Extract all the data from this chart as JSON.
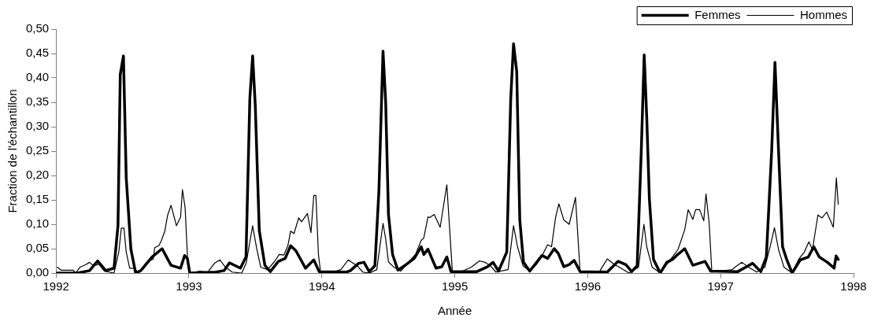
{
  "chart_data": {
    "type": "line",
    "xlabel": "Année",
    "ylabel": "Fraction de l'échantillon",
    "legend": "top right",
    "grid": false,
    "marker": "none",
    "line_style": "solid",
    "xlim": [
      1992,
      1998
    ],
    "xticks": [
      1992,
      1993,
      1994,
      1995,
      1996,
      1997,
      1998
    ],
    "ylim": [
      0,
      0.5
    ],
    "yticks": [
      {
        "value": 0,
        "label": "0,00"
      },
      {
        "value": 0.05,
        "label": "0,05"
      },
      {
        "value": 0.1,
        "label": "0,10"
      },
      {
        "value": 0.15,
        "label": "0,15"
      },
      {
        "value": 0.2,
        "label": "0,20"
      },
      {
        "value": 0.25,
        "label": "0,25"
      },
      {
        "value": 0.3,
        "label": "0,30"
      },
      {
        "value": 0.35,
        "label": "0,35"
      },
      {
        "value": 0.4,
        "label": "0,40"
      },
      {
        "value": 0.45,
        "label": "0,45"
      },
      {
        "value": 0.5,
        "label": "0,50"
      }
    ],
    "series": [
      {
        "name": "Femmes",
        "color": "#000000",
        "x": [
          1992.006,
          1992.16,
          1992.252,
          1992.313,
          1992.374,
          1992.436,
          1992.466,
          1992.483,
          1992.507,
          1992.528,
          1992.563,
          1992.599,
          1992.638,
          1992.722,
          1992.798,
          1992.865,
          1992.937,
          1992.967,
          1992.988,
          1993.006,
          1993.202,
          1993.264,
          1993.305,
          1993.387,
          1993.429,
          1993.458,
          1993.479,
          1993.499,
          1993.529,
          1993.571,
          1993.612,
          1993.673,
          1993.724,
          1993.765,
          1993.804,
          1993.877,
          1993.939,
          1993.98,
          1994.184,
          1994.215,
          1994.276,
          1994.317,
          1994.356,
          1994.399,
          1994.429,
          1994.46,
          1994.48,
          1994.501,
          1994.532,
          1994.572,
          1994.632,
          1994.695,
          1994.747,
          1994.767,
          1994.798,
          1994.859,
          1994.902,
          1994.94,
          1994.971,
          1995.166,
          1995.247,
          1995.288,
          1995.329,
          1995.391,
          1995.421,
          1995.442,
          1995.466,
          1995.489,
          1995.517,
          1995.564,
          1995.656,
          1995.699,
          1995.748,
          1995.779,
          1995.82,
          1995.859,
          1995.898,
          1995.943,
          1996.147,
          1996.229,
          1996.288,
          1996.331,
          1996.372,
          1996.403,
          1996.425,
          1996.444,
          1996.464,
          1996.495,
          1996.546,
          1996.595,
          1996.638,
          1996.669,
          1996.73,
          1996.791,
          1996.883,
          1996.925,
          1997.129,
          1997.19,
          1997.241,
          1997.302,
          1997.344,
          1997.384,
          1997.409,
          1997.436,
          1997.466,
          1997.497,
          1997.538,
          1997.599,
          1997.66,
          1997.701,
          1997.742,
          1997.804,
          1997.854,
          1997.869,
          1997.885
        ],
        "values": [
          0,
          0,
          0.005,
          0.025,
          0.005,
          0.01,
          0.098,
          0.407,
          0.445,
          0.195,
          0.049,
          0,
          0.005,
          0.033,
          0.05,
          0.016,
          0.01,
          0.036,
          0.03,
          0,
          0.002,
          0.005,
          0.021,
          0.01,
          0.033,
          0.358,
          0.445,
          0.343,
          0.087,
          0.016,
          0.003,
          0.024,
          0.03,
          0.056,
          0.046,
          0.01,
          0.027,
          0.003,
          0.002,
          0.005,
          0.02,
          0.022,
          0.003,
          0.015,
          0.168,
          0.455,
          0.35,
          0.12,
          0.038,
          0.006,
          0.017,
          0.03,
          0.054,
          0.038,
          0.049,
          0.01,
          0.013,
          0.033,
          0.003,
          0.003,
          0.013,
          0.022,
          0.004,
          0.043,
          0.358,
          0.47,
          0.413,
          0.109,
          0.022,
          0.004,
          0.036,
          0.03,
          0.05,
          0.04,
          0.013,
          0.017,
          0.026,
          0.003,
          0.002,
          0.024,
          0.017,
          0.003,
          0.015,
          0.25,
          0.447,
          0.32,
          0.152,
          0.028,
          0,
          0.022,
          0.028,
          0.036,
          0.05,
          0.016,
          0.024,
          0.004,
          0.003,
          0.012,
          0.02,
          0.003,
          0.033,
          0.25,
          0.432,
          0.25,
          0.054,
          0.028,
          0,
          0.027,
          0.033,
          0.054,
          0.033,
          0.022,
          0.01,
          0.035,
          0.028
        ]
      },
      {
        "name": "Hommes",
        "color": "#000000",
        "x": [
          1992.01,
          1992.037,
          1992.129,
          1992.147,
          1992.18,
          1992.221,
          1992.252,
          1992.282,
          1992.323,
          1992.364,
          1992.436,
          1992.472,
          1992.491,
          1992.511,
          1992.528,
          1992.554,
          1992.589,
          1992.62,
          1992.681,
          1992.732,
          1992.742,
          1992.773,
          1992.793,
          1992.818,
          1992.84,
          1992.865,
          1992.906,
          1992.937,
          1992.951,
          1992.971,
          1992.992,
          1993.008,
          1993.08,
          1993.141,
          1993.192,
          1993.233,
          1993.274,
          1993.325,
          1993.397,
          1993.431,
          1993.479,
          1993.509,
          1993.54,
          1993.591,
          1993.642,
          1993.679,
          1993.714,
          1993.744,
          1993.765,
          1993.79,
          1993.826,
          1993.847,
          1993.891,
          1993.918,
          1993.939,
          1993.955,
          1993.974,
          1993.99,
          1994.061,
          1994.143,
          1994.198,
          1994.235,
          1994.266,
          1994.307,
          1994.358,
          1994.413,
          1994.46,
          1994.48,
          1994.501,
          1994.542,
          1994.593,
          1994.655,
          1994.706,
          1994.747,
          1994.767,
          1994.798,
          1994.814,
          1994.845,
          1994.89,
          1994.94,
          1994.982,
          1995.043,
          1995.124,
          1995.186,
          1995.227,
          1995.268,
          1995.309,
          1995.401,
          1995.442,
          1995.472,
          1995.513,
          1995.564,
          1995.615,
          1995.656,
          1995.698,
          1995.728,
          1995.759,
          1995.783,
          1995.82,
          1995.861,
          1995.908,
          1995.943,
          1996.086,
          1996.147,
          1996.198,
          1996.25,
          1996.311,
          1996.382,
          1996.423,
          1996.444,
          1996.485,
          1996.546,
          1996.618,
          1996.679,
          1996.73,
          1996.756,
          1996.791,
          1996.812,
          1996.842,
          1996.873,
          1996.89,
          1996.914,
          1996.934,
          1997.088,
          1997.108,
          1997.16,
          1997.21,
          1997.272,
          1997.333,
          1997.374,
          1997.405,
          1997.436,
          1997.477,
          1997.538,
          1997.589,
          1997.63,
          1997.664,
          1997.691,
          1997.732,
          1997.763,
          1997.798,
          1997.848,
          1997.871,
          1997.885
        ],
        "values": [
          0.012,
          0.006,
          0.006,
          0,
          0.012,
          0.017,
          0.022,
          0.015,
          0.018,
          0.004,
          0,
          0.043,
          0.092,
          0.092,
          0.043,
          0.01,
          0.01,
          0,
          0.022,
          0.029,
          0.052,
          0.056,
          0.067,
          0.086,
          0.119,
          0.139,
          0.097,
          0.115,
          0.171,
          0.134,
          0.015,
          0,
          0.004,
          0.002,
          0.02,
          0.027,
          0.012,
          0.002,
          0,
          0.021,
          0.097,
          0.051,
          0.012,
          0.007,
          0.023,
          0.038,
          0.037,
          0.056,
          0.086,
          0.081,
          0.113,
          0.105,
          0.122,
          0.083,
          0.159,
          0.159,
          0.039,
          0.002,
          0,
          0.007,
          0.027,
          0.02,
          0.015,
          0.002,
          0,
          0.007,
          0.102,
          0.07,
          0.023,
          0.012,
          0.004,
          0.023,
          0.039,
          0.067,
          0.072,
          0.115,
          0.114,
          0.12,
          0.094,
          0.181,
          0.002,
          0.002,
          0.012,
          0.025,
          0.022,
          0.015,
          0.002,
          0.007,
          0.097,
          0.054,
          0.015,
          0.004,
          0.018,
          0.035,
          0.058,
          0.054,
          0.115,
          0.142,
          0.109,
          0.1,
          0.155,
          0.002,
          0.002,
          0.029,
          0.018,
          0.01,
          0,
          0.012,
          0.1,
          0.054,
          0.012,
          0,
          0.026,
          0.048,
          0.089,
          0.13,
          0.11,
          0.13,
          0.13,
          0.107,
          0.162,
          0.102,
          0.002,
          0.007,
          0.012,
          0.022,
          0.012,
          0.002,
          0.012,
          0.056,
          0.093,
          0.048,
          0.012,
          0,
          0.029,
          0.043,
          0.064,
          0.048,
          0.119,
          0.113,
          0.125,
          0.094,
          0.195,
          0.141
        ]
      }
    ]
  }
}
